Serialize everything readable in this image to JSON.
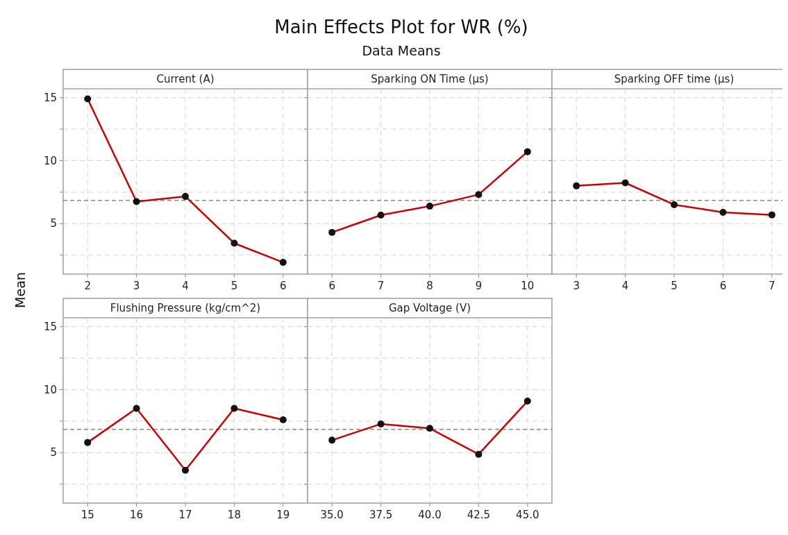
{
  "chart_data": [
    {
      "type": "other",
      "title": "Main Effects Plot for WR (%)",
      "subtitle": "Data Means"
    },
    {
      "type": "line",
      "ylabel": "Mean",
      "xlabel": "Current (A)",
      "x": [
        2,
        3,
        4,
        5,
        6
      ],
      "values": [
        14.9,
        6.75,
        7.16,
        3.45,
        1.93
      ],
      "color": "#cc0000",
      "marker": "circle",
      "xlim": [
        1.5,
        6.5
      ],
      "xticks": [
        2,
        3,
        4,
        5,
        6
      ],
      "ylim": [
        1,
        15.7
      ],
      "yticks": [
        {
          "value": 2.5,
          "label": null
        },
        5,
        {
          "value": 7.5,
          "label": null
        },
        10,
        {
          "value": 12.5,
          "label": null
        },
        15
      ],
      "grid": true,
      "ref_lines": [
        {
          "axis": "y",
          "value": 6.85,
          "line_style": "dashed"
        }
      ]
    },
    {
      "type": "line",
      "xlabel": "Sparking ON Time (µs)",
      "x": [
        6,
        7,
        8,
        9,
        10
      ],
      "values": [
        4.31,
        5.68,
        6.39,
        7.31,
        10.71
      ],
      "color": "#cc0000",
      "marker": "circle",
      "xlim": [
        5.5,
        10.5
      ],
      "xticks": [
        6,
        7,
        8,
        9,
        10
      ],
      "ylim": [
        1,
        15.7
      ],
      "yticks": [
        {
          "value": 2.5,
          "label": null
        },
        5,
        {
          "value": 7.5,
          "label": null
        },
        10,
        {
          "value": 12.5,
          "label": null
        },
        15
      ],
      "grid": true,
      "tick_labels": "x",
      "ref_lines": [
        {
          "axis": "y",
          "value": 6.85,
          "line_style": "dashed"
        }
      ]
    },
    {
      "type": "line",
      "xlabel": "Sparking OFF time (µs)",
      "x": [
        3,
        4,
        5,
        6,
        7
      ],
      "values": [
        8.0,
        8.24,
        6.51,
        5.9,
        5.7
      ],
      "color": "#cc0000",
      "marker": "circle",
      "xlim": [
        2.5,
        7.5
      ],
      "xticks": [
        3,
        4,
        5,
        6,
        7
      ],
      "ylim": [
        1,
        15.7
      ],
      "yticks": [
        {
          "value": 2.5,
          "label": null
        },
        5,
        {
          "value": 7.5,
          "label": null
        },
        10,
        {
          "value": 12.5,
          "label": null
        },
        15
      ],
      "grid": true,
      "tick_labels": "x",
      "ref_lines": [
        {
          "axis": "y",
          "value": 6.85,
          "line_style": "dashed"
        }
      ]
    },
    {
      "type": "line",
      "xlabel": "Flushing Pressure (kg/cm^2)",
      "x": [
        15,
        16,
        17,
        18,
        19
      ],
      "values": [
        5.81,
        8.52,
        3.6,
        8.52,
        7.61
      ],
      "color": "#cc0000",
      "marker": "circle",
      "xlim": [
        14.5,
        19.5
      ],
      "xticks": [
        15,
        16,
        17,
        18,
        19
      ],
      "ylim": [
        1,
        15.7
      ],
      "yticks": [
        {
          "value": 2.5,
          "label": null
        },
        5,
        {
          "value": 7.5,
          "label": null
        },
        10,
        {
          "value": 12.5,
          "label": null
        },
        15
      ],
      "grid": true,
      "ref_lines": [
        {
          "axis": "y",
          "value": 6.85,
          "line_style": "dashed"
        }
      ]
    },
    {
      "type": "line",
      "xlabel": "Gap Voltage (V)",
      "x": [
        35,
        37.5,
        40,
        42.5,
        45
      ],
      "values": [
        5.99,
        7.28,
        6.93,
        4.87,
        9.09
      ],
      "color": "#cc0000",
      "marker": "circle",
      "xlim": [
        33.75,
        46.25
      ],
      "xticks": [
        {
          "value": 35,
          "label": "35.0"
        },
        {
          "value": 37.5,
          "label": "37.5"
        },
        {
          "value": 40,
          "label": "40.0"
        },
        {
          "value": 42.5,
          "label": "42.5"
        },
        {
          "value": 45,
          "label": "45.0"
        }
      ],
      "ylim": [
        1,
        15.7
      ],
      "yticks": [
        {
          "value": 2.5,
          "label": null
        },
        5,
        {
          "value": 7.5,
          "label": null
        },
        10,
        {
          "value": 12.5,
          "label": null
        },
        15
      ],
      "grid": true,
      "tick_labels": "x",
      "ref_lines": [
        {
          "axis": "y",
          "value": 6.85,
          "line_style": "dashed"
        }
      ]
    }
  ]
}
